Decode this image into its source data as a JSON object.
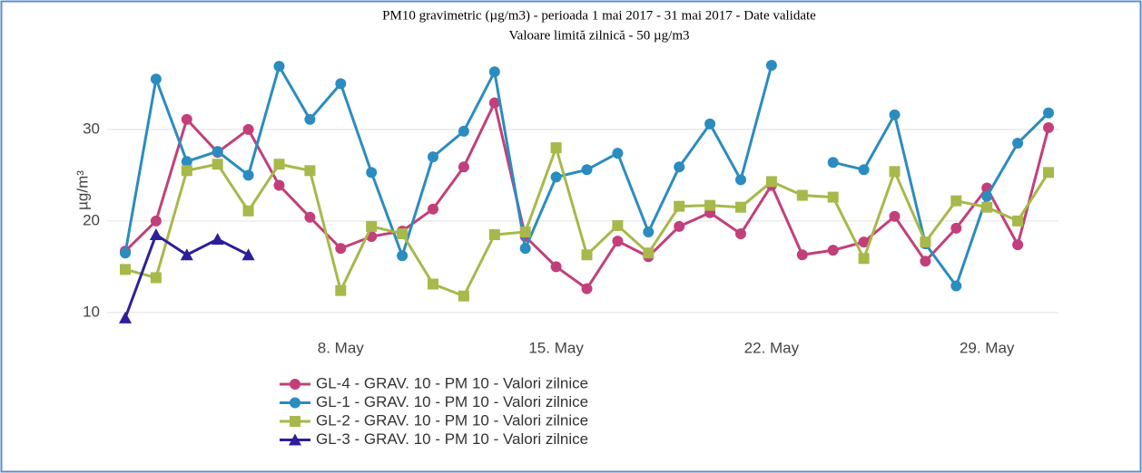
{
  "chart_data": {
    "type": "line",
    "title": "PM10 gravimetric (µg/m3) - perioada 1 mai 2017 - 31 mai 2017 - Date validate",
    "subtitle": "Valoare limită zilnică - 50 µg/m3",
    "y_label": "µg/m³",
    "x": [
      1,
      2,
      3,
      4,
      5,
      6,
      7,
      8,
      9,
      10,
      11,
      12,
      13,
      14,
      15,
      16,
      17,
      18,
      19,
      20,
      21,
      22,
      23,
      24,
      25,
      26,
      27,
      28,
      29,
      30,
      31
    ],
    "xlim": [
      1,
      31
    ],
    "xticks": [
      {
        "value": 8,
        "label": "8. May"
      },
      {
        "value": 15,
        "label": "15. May"
      },
      {
        "value": 22,
        "label": "22. May"
      },
      {
        "value": 29,
        "label": "29. May"
      }
    ],
    "ylim": [
      8.5,
      38.5
    ],
    "yticks": [
      10,
      20,
      30
    ],
    "grid": true,
    "series": [
      {
        "name": "GL-4 - GRAV. 10 - PM 10 - Valori zilnice",
        "color": "#c2407a",
        "marker": "circle",
        "values": [
          16.7,
          20,
          31.1,
          27.5,
          30,
          23.9,
          20.4,
          17,
          18.3,
          18.9,
          21.3,
          25.9,
          32.9,
          18.3,
          15,
          12.6,
          17.8,
          16.1,
          19.4,
          20.9,
          18.6,
          23.9,
          16.3,
          16.8,
          17.7,
          20.5,
          15.6,
          19.2,
          23.6,
          17.4,
          30.2
        ]
      },
      {
        "name": "GL-1 - GRAV. 10 - PM 10 - Valori zilnice",
        "color": "#2b8cbf",
        "marker": "circle",
        "values": [
          16.5,
          35.5,
          26.5,
          27.6,
          25,
          36.9,
          31.1,
          35,
          25.3,
          16.2,
          27,
          29.8,
          36.3,
          17,
          24.8,
          25.6,
          27.4,
          18.8,
          25.9,
          30.6,
          24.5,
          37,
          null,
          26.4,
          25.6,
          31.6,
          17.5,
          12.9,
          22.7,
          28.5,
          31.8
        ]
      },
      {
        "name": "GL-2 - GRAV. 10 - PM 10 - Valori zilnice",
        "color": "#a8b84a",
        "marker": "square",
        "values": [
          14.7,
          13.8,
          25.5,
          26.2,
          21.1,
          26.2,
          25.5,
          12.4,
          19.4,
          18.6,
          13.1,
          11.8,
          18.5,
          18.8,
          28,
          16.3,
          19.5,
          16.5,
          21.6,
          21.7,
          21.5,
          24.3,
          22.8,
          22.6,
          15.9,
          25.4,
          17.7,
          22.2,
          21.5,
          20,
          25.3
        ]
      },
      {
        "name": "GL-3 - GRAV. 10 - PM 10 - Valori zilnice",
        "color": "#2d1f9a",
        "marker": "triangle",
        "values": [
          9.4,
          18.5,
          16.3,
          18,
          16.3,
          null,
          null,
          null,
          null,
          null,
          null,
          null,
          null,
          null,
          null,
          null,
          null,
          null,
          null,
          null,
          null,
          null,
          null,
          null,
          null,
          null,
          null,
          null,
          null,
          null,
          null
        ]
      }
    ]
  }
}
